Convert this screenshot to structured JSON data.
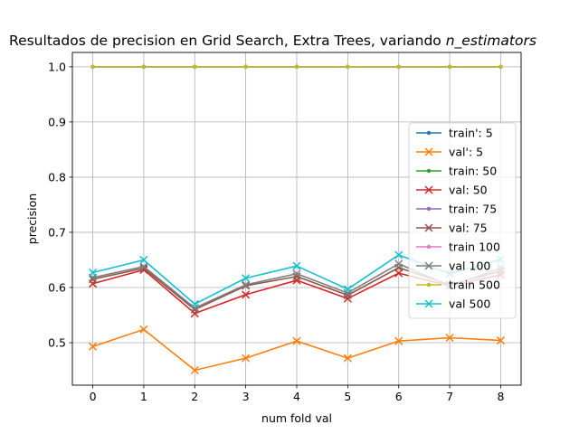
{
  "chart_data": {
    "type": "line",
    "title": "Resultados de precision en Grid Search, Extra Trees, variando",
    "title_italic": "n_estimators",
    "xlabel": "num fold val",
    "ylabel": "precision",
    "x": [
      0,
      1,
      2,
      3,
      4,
      5,
      6,
      7,
      8
    ],
    "xlim": [
      -0.4,
      8.4
    ],
    "ylim": [
      0.423,
      1.026
    ],
    "xticks": [
      "0",
      "1",
      "2",
      "3",
      "4",
      "5",
      "6",
      "7",
      "8"
    ],
    "yticks": [
      "0.5",
      "0.6",
      "0.7",
      "0.8",
      "0.9",
      "1.0"
    ],
    "ytick_values": [
      0.5,
      0.6,
      0.7,
      0.8,
      0.9,
      1.0
    ],
    "grid": true,
    "legend_position": "center-right",
    "series": [
      {
        "name": "train': 5",
        "color": "#1f77b4",
        "marker": "dot",
        "values": [
          1,
          1,
          1,
          1,
          1,
          1,
          1,
          1,
          1
        ]
      },
      {
        "name": "val': 5",
        "color": "#ff7f0e",
        "marker": "x",
        "values": [
          0.493,
          0.524,
          0.45,
          0.472,
          0.503,
          0.472,
          0.503,
          0.509,
          0.504
        ]
      },
      {
        "name": "train: 50",
        "color": "#2ca02c",
        "marker": "dot",
        "values": [
          1,
          1,
          1,
          1,
          1,
          1,
          1,
          1,
          1
        ]
      },
      {
        "name": "val: 50",
        "color": "#d62728",
        "marker": "x",
        "values": [
          0.607,
          0.632,
          0.553,
          0.587,
          0.613,
          0.58,
          0.626,
          0.603,
          0.623
        ]
      },
      {
        "name": "train: 75",
        "color": "#9467bd",
        "marker": "dot",
        "values": [
          1,
          1,
          1,
          1,
          1,
          1,
          1,
          1,
          1
        ]
      },
      {
        "name": "val: 75",
        "color": "#8c564b",
        "marker": "x",
        "values": [
          0.615,
          0.635,
          0.56,
          0.603,
          0.62,
          0.586,
          0.636,
          0.605,
          0.63
        ]
      },
      {
        "name": "train 100",
        "color": "#e377c2",
        "marker": "dot",
        "values": [
          1,
          1,
          1,
          1,
          1,
          1,
          1,
          1,
          1
        ]
      },
      {
        "name": "val 100",
        "color": "#7f7f7f",
        "marker": "x",
        "values": [
          0.618,
          0.638,
          0.563,
          0.605,
          0.625,
          0.59,
          0.643,
          0.603,
          0.635
        ]
      },
      {
        "name": "train 500",
        "color": "#bcbd22",
        "marker": "dot",
        "values": [
          1,
          1,
          1,
          1,
          1,
          1,
          1,
          1,
          1
        ]
      },
      {
        "name": "val 500",
        "color": "#17becf",
        "marker": "x",
        "values": [
          0.627,
          0.65,
          0.57,
          0.617,
          0.639,
          0.597,
          0.659,
          0.625,
          0.651
        ]
      }
    ]
  }
}
